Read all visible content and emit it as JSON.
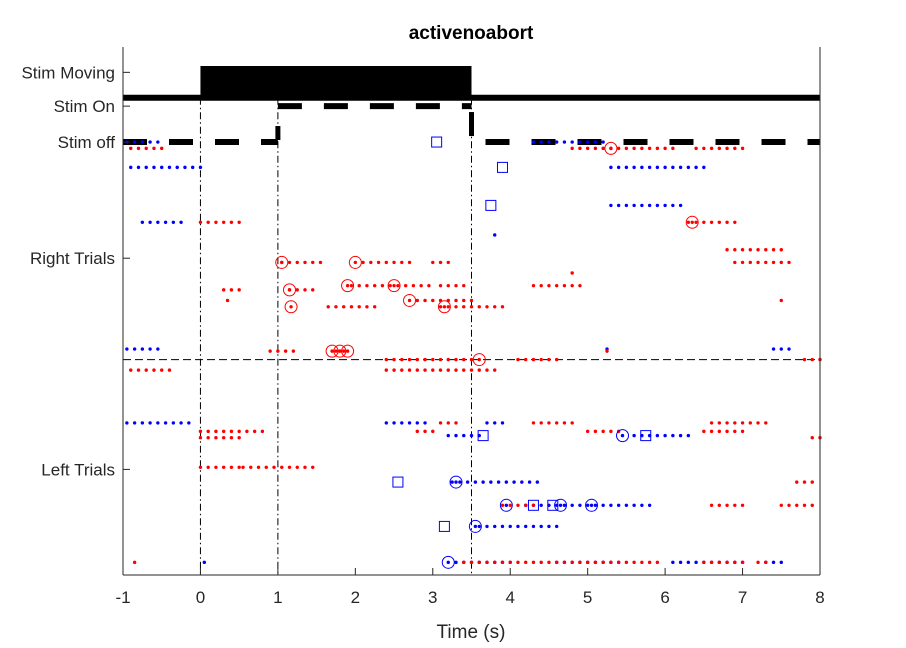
{
  "chart_data": {
    "type": "scatter",
    "title": "activenoabort",
    "xlabel": "Time (s)",
    "ylabel": "",
    "xlim": [
      -1,
      8
    ],
    "ylim": [
      0,
      25
    ],
    "xticks": [
      -1,
      0,
      1,
      2,
      3,
      4,
      5,
      6,
      7,
      8
    ],
    "yticks": [
      {
        "label": "Stim Moving",
        "y": 23.8
      },
      {
        "label": "Stim On",
        "y": 22.2
      },
      {
        "label": "Stim off",
        "y": 20.5
      },
      {
        "label": "Right Trials",
        "y": 15
      },
      {
        "label": "Left Trials",
        "y": 5
      }
    ],
    "grid": false,
    "colors": {
      "right": "#ff0000",
      "left": "#0000ff",
      "axis": "#262626",
      "event": "#000000"
    },
    "stim_trace": {
      "moving_block": {
        "x": [
          0,
          3.5
        ],
        "y": [
          22.6,
          24.1
        ]
      },
      "baseline_y": 22.6,
      "on_dash_y": 22.2,
      "off_dash_y": 20.5,
      "on_interval": [
        1,
        3.5
      ]
    },
    "event_lines_x": [
      0,
      1,
      3.5
    ],
    "divider_y": 10.2,
    "trials": [
      {
        "y": 20.2,
        "color": "red",
        "dots": [
          [
            -0.9,
            -0.5
          ],
          [
            4.8,
            5.4
          ],
          [
            5.5,
            6.1
          ],
          [
            6.4,
            7.0
          ]
        ],
        "circles": [
          5.3
        ],
        "squares": []
      },
      {
        "y": 20.5,
        "color": "blue",
        "dots": [
          [
            -0.95,
            -0.5
          ],
          [
            4.3,
            5.2
          ]
        ],
        "circles": [],
        "squares": [
          3.05
        ]
      },
      {
        "y": 19.3,
        "color": "blue",
        "dots": [
          [
            -0.9,
            0.05
          ],
          [
            5.3,
            6.5
          ]
        ],
        "circles": [],
        "squares": [
          3.9
        ]
      },
      {
        "y": 17.5,
        "color": "blue",
        "dots": [
          [
            5.3,
            6.2
          ]
        ],
        "circles": [],
        "squares": [
          3.75
        ]
      },
      {
        "y": 16.7,
        "color": "blue",
        "dots": [
          [
            -0.75,
            -0.2
          ]
        ],
        "circles": [],
        "squares": []
      },
      {
        "y": 16.7,
        "color": "red",
        "dots": [
          [
            0,
            0.5
          ],
          [
            6.3,
            6.9
          ]
        ],
        "circles": [
          6.35
        ],
        "squares": []
      },
      {
        "y": 16.1,
        "color": "blue",
        "dots": [
          [
            3.8,
            3.8
          ]
        ],
        "circles": [],
        "squares": []
      },
      {
        "y": 15.4,
        "color": "red",
        "dots": [
          [
            6.8,
            7.5
          ]
        ],
        "circles": [],
        "squares": []
      },
      {
        "y": 14.8,
        "color": "red",
        "dots": [
          [
            1.05,
            1.6
          ],
          [
            2.1,
            2.7
          ],
          [
            3.0,
            3.2
          ],
          [
            6.9,
            7.6
          ]
        ],
        "circles": [
          1.05,
          2.0
        ],
        "squares": []
      },
      {
        "y": 14.3,
        "color": "red",
        "dots": [
          [
            4.8,
            4.8
          ]
        ],
        "circles": [],
        "squares": []
      },
      {
        "y": 13.7,
        "color": "red",
        "dots": [
          [
            1.95,
            3.0
          ],
          [
            3.1,
            3.4
          ],
          [
            4.3,
            4.9
          ]
        ],
        "circles": [
          1.9,
          2.5
        ],
        "squares": []
      },
      {
        "y": 13.5,
        "color": "red",
        "dots": [
          [
            0.3,
            0.5
          ],
          [
            1.15,
            1.5
          ]
        ],
        "circles": [
          1.15
        ],
        "squares": []
      },
      {
        "y": 13.0,
        "color": "red",
        "dots": [
          [
            0.35,
            0.4
          ],
          [
            2.8,
            3.5
          ],
          [
            7.5,
            7.5
          ]
        ],
        "circles": [
          2.7
        ],
        "squares": []
      },
      {
        "y": 12.7,
        "color": "red",
        "dots": [
          [
            1.65,
            2.3
          ],
          [
            3.1,
            3.9
          ]
        ],
        "circles": [
          1.17,
          3.15
        ],
        "squares": []
      },
      {
        "y": 10.7,
        "color": "blue",
        "dots": [
          [
            -0.95,
            -0.5
          ],
          [
            5.25,
            5.3
          ],
          [
            7.4,
            7.6
          ]
        ],
        "circles": [],
        "squares": []
      },
      {
        "y": 10.6,
        "color": "red",
        "dots": [
          [
            -0.35,
            -0.4
          ],
          [
            0.9,
            1.2
          ],
          [
            1.75,
            1.9
          ],
          [
            5.25,
            5.3
          ]
        ],
        "circles": [
          1.7,
          1.9,
          1.8
        ],
        "squares": []
      },
      {
        "y": 10.2,
        "color": "red",
        "dots": [
          [
            2.4,
            3.5
          ],
          [
            4.1,
            4.6
          ],
          [
            7.8,
            8.0
          ]
        ],
        "circles": [
          3.6
        ],
        "squares": []
      },
      {
        "y": 9.7,
        "color": "red",
        "dots": [
          [
            -0.9,
            -0.4
          ],
          [
            2.4,
            3.4
          ],
          [
            3.5,
            3.8
          ]
        ],
        "circles": [],
        "squares": []
      },
      {
        "y": 7.2,
        "color": "blue",
        "dots": [
          [
            -0.95,
            -0.1
          ],
          [
            2.4,
            2.9
          ],
          [
            3.7,
            3.9
          ]
        ],
        "circles": [],
        "squares": []
      },
      {
        "y": 7.2,
        "color": "red",
        "dots": [
          [
            3.1,
            3.3
          ],
          [
            4.3,
            4.8
          ],
          [
            6.6,
            7.3
          ]
        ],
        "circles": [],
        "squares": []
      },
      {
        "y": 6.8,
        "color": "red",
        "dots": [
          [
            0,
            0.8
          ],
          [
            2.8,
            3.0
          ],
          [
            5.0,
            5.4
          ],
          [
            6.5,
            7.0
          ]
        ],
        "circles": [],
        "squares": []
      },
      {
        "y": 6.6,
        "color": "blue",
        "dots": [
          [
            3.2,
            3.6
          ],
          [
            5.6,
            6.3
          ]
        ],
        "circles": [
          5.45
        ],
        "squares": [
          3.65,
          5.75
        ]
      },
      {
        "y": 6.5,
        "color": "red",
        "dots": [
          [
            0,
            0.5
          ],
          [
            7.9,
            8.0
          ]
        ],
        "circles": [],
        "squares": []
      },
      {
        "y": 5.1,
        "color": "red",
        "dots": [
          [
            0,
            0.5
          ],
          [
            0.55,
            1.5
          ]
        ],
        "circles": [],
        "squares": []
      },
      {
        "y": 4.4,
        "color": "blue",
        "dots": [
          [
            3.25,
            4.4
          ]
        ],
        "circles": [
          3.3
        ],
        "squares": [
          2.55
        ]
      },
      {
        "y": 4.4,
        "color": "red",
        "dots": [
          [
            7.7,
            7.9
          ]
        ],
        "circles": [],
        "squares": []
      },
      {
        "y": 3.3,
        "color": "blue",
        "dots": [
          [
            4.2,
            4.9
          ],
          [
            5.0,
            5.8
          ]
        ],
        "circles": [
          3.95,
          4.65,
          5.05
        ],
        "squares": [
          4.55,
          4.3
        ]
      },
      {
        "y": 3.3,
        "color": "red",
        "dots": [
          [
            3.9,
            4.3
          ],
          [
            6.6,
            7.0
          ],
          [
            7.5,
            7.9
          ]
        ],
        "circles": [],
        "squares": []
      },
      {
        "y": 2.3,
        "color": "blue",
        "dots": [
          [
            3.6,
            4.6
          ]
        ],
        "circles": [
          3.55
        ],
        "squares": [
          3.15
        ]
      },
      {
        "y": 0.6,
        "color": "blue",
        "dots": [
          [
            0.05,
            0.08
          ],
          [
            3.3,
            4.0
          ],
          [
            4.6,
            5.4
          ],
          [
            6.1,
            7.0
          ],
          [
            7.3,
            7.5
          ]
        ],
        "circles": [
          3.2
        ],
        "squares": []
      },
      {
        "y": 0.6,
        "color": "red",
        "dots": [
          [
            -0.85,
            -0.8
          ],
          [
            3.4,
            4.2
          ],
          [
            4.3,
            4.9
          ],
          [
            5.0,
            5.9
          ],
          [
            6.5,
            7.0
          ],
          [
            7.2,
            7.35
          ]
        ],
        "circles": [],
        "squares": []
      }
    ]
  }
}
